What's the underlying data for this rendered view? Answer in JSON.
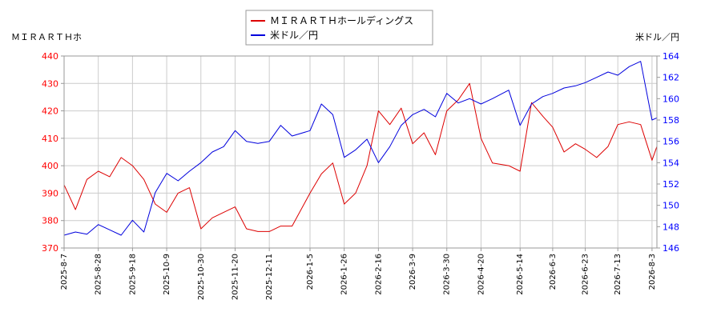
{
  "colors": {
    "left_series": "#dd0000",
    "right_series": "#0000dd",
    "left_ticks": "#ff0000",
    "right_ticks": "#0000ff",
    "grid": "#cccccc"
  },
  "chart_data": {
    "type": "line",
    "y_left_label": "ＭＩＲＡＲＴＨホ",
    "y_right_label": "米ドル／円",
    "y_left_range": [
      370,
      440
    ],
    "y_right_range": [
      146,
      164
    ],
    "y_left_ticks": [
      370,
      380,
      390,
      400,
      410,
      420,
      430,
      440
    ],
    "y_right_ticks": [
      146,
      148,
      150,
      152,
      154,
      156,
      158,
      160,
      162,
      164
    ],
    "x_tick_labels": [
      "2025-8-7",
      "2025-8-28",
      "2025-9-18",
      "2025-10-9",
      "2025-10-30",
      "2025-11-20",
      "2025-12-11",
      "2026-1-5",
      "2026-1-26",
      "2026-2-16",
      "2026-3-9",
      "2026-3-30",
      "2026-4-20",
      "2026-5-14",
      "2026-6-3",
      "2026-6-23",
      "2026-7-13",
      "2026-8-3"
    ],
    "grid": true,
    "legend_position": "top-center",
    "series": [
      {
        "name": "ＭＩＲＡＲＴＨホールディングス",
        "axis": "left",
        "x": [
          "2025-8-7",
          "2025-8-14",
          "2025-8-21",
          "2025-8-28",
          "2025-9-4",
          "2025-9-11",
          "2025-9-18",
          "2025-9-25",
          "2025-10-2",
          "2025-10-9",
          "2025-10-16",
          "2025-10-23",
          "2025-10-30",
          "2025-11-6",
          "2025-11-13",
          "2025-11-20",
          "2025-11-27",
          "2025-12-4",
          "2025-12-11",
          "2025-12-18",
          "2025-12-25",
          "2026-1-5",
          "2026-1-12",
          "2026-1-19",
          "2026-1-26",
          "2026-2-2",
          "2026-2-9",
          "2026-2-16",
          "2026-2-23",
          "2026-3-2",
          "2026-3-9",
          "2026-3-16",
          "2026-3-23",
          "2026-3-30",
          "2026-4-6",
          "2026-4-13",
          "2026-4-20",
          "2026-4-27",
          "2026-5-7",
          "2026-5-14",
          "2026-5-21",
          "2026-5-28",
          "2026-6-3",
          "2026-6-10",
          "2026-6-17",
          "2026-6-23",
          "2026-6-30",
          "2026-7-7",
          "2026-7-13",
          "2026-7-20",
          "2026-7-27",
          "2026-8-3",
          "2026-8-6"
        ],
        "values": [
          393,
          384,
          395,
          398,
          396,
          403,
          400,
          395,
          386,
          383,
          390,
          392,
          377,
          381,
          383,
          385,
          377,
          376,
          376,
          378,
          378,
          390,
          397,
          401,
          386,
          390,
          400,
          420,
          415,
          421,
          408,
          412,
          404,
          420,
          424,
          430,
          410,
          401,
          400,
          398,
          423,
          418,
          414,
          405,
          408,
          406,
          403,
          407,
          415,
          416,
          415,
          402,
          407
        ]
      },
      {
        "name": "米ドル／円",
        "axis": "right",
        "x": [
          "2025-8-7",
          "2025-8-14",
          "2025-8-21",
          "2025-8-28",
          "2025-9-4",
          "2025-9-11",
          "2025-9-18",
          "2025-9-25",
          "2025-10-2",
          "2025-10-9",
          "2025-10-16",
          "2025-10-23",
          "2025-10-30",
          "2025-11-6",
          "2025-11-13",
          "2025-11-20",
          "2025-11-27",
          "2025-12-4",
          "2025-12-11",
          "2025-12-18",
          "2025-12-25",
          "2026-1-5",
          "2026-1-12",
          "2026-1-19",
          "2026-1-26",
          "2026-2-2",
          "2026-2-9",
          "2026-2-16",
          "2026-2-23",
          "2026-3-2",
          "2026-3-9",
          "2026-3-16",
          "2026-3-23",
          "2026-3-30",
          "2026-4-6",
          "2026-4-13",
          "2026-4-20",
          "2026-4-27",
          "2026-5-7",
          "2026-5-14",
          "2026-5-21",
          "2026-5-28",
          "2026-6-3",
          "2026-6-10",
          "2026-6-17",
          "2026-6-23",
          "2026-6-30",
          "2026-7-7",
          "2026-7-13",
          "2026-7-20",
          "2026-7-27",
          "2026-8-3",
          "2026-8-6"
        ],
        "values": [
          147.2,
          147.5,
          147.3,
          148.2,
          147.7,
          147.2,
          148.6,
          147.5,
          151.2,
          153.0,
          152.3,
          153.2,
          154.0,
          155.0,
          155.5,
          157.0,
          156.0,
          155.8,
          156.0,
          157.5,
          156.5,
          157.0,
          159.5,
          158.5,
          154.5,
          155.2,
          156.2,
          154.0,
          155.5,
          157.5,
          158.5,
          159.0,
          158.3,
          160.5,
          159.6,
          160.0,
          159.5,
          160.0,
          160.8,
          157.5,
          159.5,
          160.2,
          160.5,
          161.0,
          161.2,
          161.5,
          162.0,
          162.5,
          162.2,
          163.0,
          163.5,
          158.0,
          158.2
        ]
      }
    ]
  }
}
